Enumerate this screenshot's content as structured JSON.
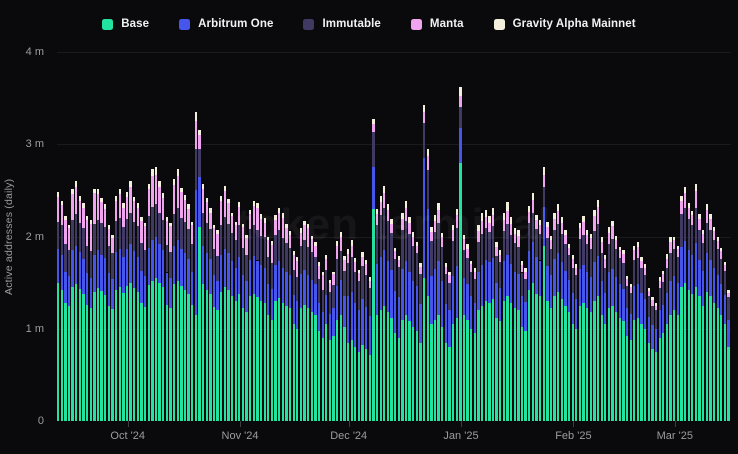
{
  "chart_data": {
    "type": "bar",
    "subtype": "stacked-daily",
    "title": "",
    "ylabel": "Active addresses (daily)",
    "xlabel": "",
    "unit": "millions",
    "y_max": 4,
    "grid": "horizontal-faint",
    "legend_position": "top-center",
    "watermark": "token terminal",
    "y_ticks": [
      {
        "label": "4 m",
        "value": 4
      },
      {
        "label": "3 m",
        "value": 3
      },
      {
        "label": "2 m",
        "value": 2
      },
      {
        "label": "1 m",
        "value": 1
      },
      {
        "label": "0",
        "value": 0
      }
    ],
    "x_ticks": [
      {
        "label": "Oct '24",
        "day_index": 19
      },
      {
        "label": "Nov '24",
        "day_index": 50
      },
      {
        "label": "Dec '24",
        "day_index": 80
      },
      {
        "label": "Jan '25",
        "day_index": 111
      },
      {
        "label": "Feb '25",
        "day_index": 142
      },
      {
        "label": "Mar '25",
        "day_index": 170
      }
    ],
    "series_order_note": "each day tuple is [Base, Arbitrum One, Immutable, Manta, Gravity Alpha Mainnet] in millions of daily active addresses",
    "series": [
      {
        "id": "base",
        "name": "Base",
        "color": "#23e3a1"
      },
      {
        "id": "arbitrum",
        "name": "Arbitrum One",
        "color": "#4656ec"
      },
      {
        "id": "immutable",
        "name": "Immutable",
        "color": "#403a63"
      },
      {
        "id": "manta",
        "name": "Manta",
        "color": "#f0a4f0"
      },
      {
        "id": "gravity",
        "name": "Gravity Alpha Mainnet",
        "color": "#f4efdc"
      }
    ],
    "days": [
      [
        1.5,
        0.36,
        0.3,
        0.27,
        0.05
      ],
      [
        1.42,
        0.38,
        0.32,
        0.22,
        0.05
      ],
      [
        1.28,
        0.34,
        0.3,
        0.26,
        0.04
      ],
      [
        1.25,
        0.32,
        0.28,
        0.24,
        0.04
      ],
      [
        1.45,
        0.4,
        0.33,
        0.28,
        0.05
      ],
      [
        1.48,
        0.42,
        0.34,
        0.3,
        0.06
      ],
      [
        1.43,
        0.4,
        0.32,
        0.24,
        0.05
      ],
      [
        1.38,
        0.38,
        0.33,
        0.22,
        0.05
      ],
      [
        1.26,
        0.34,
        0.3,
        0.28,
        0.04
      ],
      [
        1.22,
        0.33,
        0.29,
        0.3,
        0.04
      ],
      [
        1.4,
        0.4,
        0.34,
        0.33,
        0.05
      ],
      [
        1.44,
        0.41,
        0.33,
        0.28,
        0.06
      ],
      [
        1.41,
        0.39,
        0.35,
        0.22,
        0.05
      ],
      [
        1.37,
        0.4,
        0.33,
        0.2,
        0.05
      ],
      [
        1.25,
        0.35,
        0.3,
        0.18,
        0.04
      ],
      [
        1.21,
        0.33,
        0.28,
        0.16,
        0.04
      ],
      [
        1.42,
        0.41,
        0.34,
        0.22,
        0.05
      ],
      [
        1.45,
        0.42,
        0.33,
        0.26,
        0.06
      ],
      [
        1.39,
        0.39,
        0.32,
        0.21,
        0.05
      ],
      [
        1.46,
        0.4,
        0.33,
        0.24,
        0.05
      ],
      [
        1.5,
        0.42,
        0.34,
        0.28,
        0.06
      ],
      [
        1.44,
        0.4,
        0.32,
        0.22,
        0.05
      ],
      [
        1.4,
        0.38,
        0.33,
        0.2,
        0.05
      ],
      [
        1.28,
        0.35,
        0.3,
        0.24,
        0.04
      ],
      [
        1.24,
        0.33,
        0.28,
        0.26,
        0.04
      ],
      [
        1.47,
        0.41,
        0.34,
        0.3,
        0.05
      ],
      [
        1.52,
        0.44,
        0.36,
        0.34,
        0.07
      ],
      [
        1.55,
        0.45,
        0.35,
        0.32,
        0.08
      ],
      [
        1.5,
        0.42,
        0.34,
        0.28,
        0.06
      ],
      [
        1.45,
        0.4,
        0.33,
        0.24,
        0.05
      ],
      [
        1.26,
        0.35,
        0.3,
        0.26,
        0.04
      ],
      [
        1.22,
        0.33,
        0.28,
        0.28,
        0.04
      ],
      [
        1.48,
        0.42,
        0.34,
        0.32,
        0.06
      ],
      [
        1.52,
        0.44,
        0.35,
        0.35,
        0.07
      ],
      [
        1.46,
        0.41,
        0.33,
        0.28,
        0.05
      ],
      [
        1.42,
        0.4,
        0.34,
        0.24,
        0.05
      ],
      [
        1.38,
        0.38,
        0.32,
        0.22,
        0.05
      ],
      [
        1.26,
        0.36,
        0.3,
        0.2,
        0.04
      ],
      [
        1.15,
        1.35,
        0.45,
        0.3,
        0.1
      ],
      [
        2.1,
        0.55,
        0.3,
        0.15,
        0.05
      ],
      [
        1.48,
        0.42,
        0.35,
        0.26,
        0.06
      ],
      [
        1.42,
        0.4,
        0.33,
        0.22,
        0.05
      ],
      [
        1.38,
        0.38,
        0.32,
        0.18,
        0.05
      ],
      [
        1.24,
        0.34,
        0.29,
        0.22,
        0.04
      ],
      [
        1.2,
        0.32,
        0.27,
        0.24,
        0.04
      ],
      [
        1.4,
        0.4,
        0.33,
        0.26,
        0.05
      ],
      [
        1.45,
        0.42,
        0.34,
        0.28,
        0.06
      ],
      [
        1.42,
        0.4,
        0.32,
        0.22,
        0.05
      ],
      [
        1.36,
        0.37,
        0.31,
        0.18,
        0.04
      ],
      [
        1.3,
        0.36,
        0.3,
        0.16,
        0.04
      ],
      [
        1.38,
        0.4,
        0.34,
        0.2,
        0.05
      ],
      [
        1.22,
        0.36,
        0.3,
        0.22,
        0.04
      ],
      [
        1.18,
        0.34,
        0.28,
        0.18,
        0.04
      ],
      [
        1.35,
        0.4,
        0.33,
        0.16,
        0.05
      ],
      [
        1.38,
        0.41,
        0.34,
        0.2,
        0.06
      ],
      [
        1.34,
        0.4,
        0.33,
        0.24,
        0.05
      ],
      [
        1.3,
        0.39,
        0.32,
        0.18,
        0.05
      ],
      [
        1.28,
        0.38,
        0.33,
        0.16,
        0.05
      ],
      [
        1.15,
        0.34,
        0.29,
        0.18,
        0.04
      ],
      [
        1.1,
        0.33,
        0.28,
        0.2,
        0.04
      ],
      [
        1.3,
        0.39,
        0.33,
        0.16,
        0.05
      ],
      [
        1.33,
        0.4,
        0.34,
        0.18,
        0.06
      ],
      [
        1.28,
        0.38,
        0.32,
        0.22,
        0.05
      ],
      [
        1.25,
        0.37,
        0.31,
        0.16,
        0.05
      ],
      [
        1.22,
        0.36,
        0.3,
        0.14,
        0.04
      ],
      [
        1.05,
        0.32,
        0.27,
        0.16,
        0.04
      ],
      [
        1.0,
        0.3,
        0.26,
        0.18,
        0.04
      ],
      [
        1.22,
        0.37,
        0.31,
        0.14,
        0.05
      ],
      [
        1.26,
        0.38,
        0.32,
        0.16,
        0.05
      ],
      [
        1.22,
        0.36,
        0.31,
        0.2,
        0.05
      ],
      [
        1.18,
        0.35,
        0.3,
        0.14,
        0.04
      ],
      [
        1.15,
        0.34,
        0.29,
        0.12,
        0.04
      ],
      [
        0.98,
        0.3,
        0.26,
        0.14,
        0.04
      ],
      [
        0.9,
        0.28,
        0.24,
        0.16,
        0.03
      ],
      [
        1.05,
        0.32,
        0.27,
        0.12,
        0.04
      ],
      [
        0.88,
        0.28,
        0.24,
        0.1,
        0.03
      ],
      [
        0.92,
        0.3,
        0.25,
        0.12,
        0.03
      ],
      [
        1.1,
        0.36,
        0.3,
        0.14,
        0.05
      ],
      [
        1.15,
        0.38,
        0.31,
        0.16,
        0.05
      ],
      [
        1.02,
        0.33,
        0.28,
        0.12,
        0.04
      ],
      [
        0.85,
        0.5,
        0.36,
        0.1,
        0.05
      ],
      [
        0.88,
        0.52,
        0.38,
        0.12,
        0.06
      ],
      [
        0.8,
        0.48,
        0.34,
        0.1,
        0.05
      ],
      [
        0.75,
        0.45,
        0.32,
        0.08,
        0.04
      ],
      [
        0.82,
        0.5,
        0.36,
        0.1,
        0.05
      ],
      [
        0.78,
        0.46,
        0.34,
        0.12,
        0.05
      ],
      [
        0.72,
        0.42,
        0.3,
        0.08,
        0.04
      ],
      [
        2.3,
        0.45,
        0.38,
        0.09,
        0.05
      ],
      [
        1.15,
        0.55,
        0.42,
        0.12,
        0.06
      ],
      [
        1.2,
        0.58,
        0.45,
        0.14,
        0.07
      ],
      [
        1.25,
        0.6,
        0.46,
        0.16,
        0.08
      ],
      [
        1.18,
        0.56,
        0.43,
        0.12,
        0.06
      ],
      [
        1.12,
        0.52,
        0.4,
        0.1,
        0.05
      ],
      [
        0.95,
        0.46,
        0.35,
        0.08,
        0.04
      ],
      [
        0.9,
        0.44,
        0.33,
        0.08,
        0.04
      ],
      [
        1.1,
        0.55,
        0.42,
        0.12,
        0.06
      ],
      [
        1.15,
        0.58,
        0.44,
        0.14,
        0.07
      ],
      [
        1.08,
        0.54,
        0.41,
        0.12,
        0.06
      ],
      [
        1.02,
        0.5,
        0.38,
        0.1,
        0.05
      ],
      [
        0.98,
        0.48,
        0.36,
        0.08,
        0.04
      ],
      [
        0.85,
        0.42,
        0.32,
        0.08,
        0.04
      ],
      [
        1.55,
        1.3,
        0.38,
        0.12,
        0.08
      ],
      [
        1.35,
        0.95,
        0.42,
        0.15,
        0.08
      ],
      [
        1.05,
        0.52,
        0.38,
        0.1,
        0.05
      ],
      [
        1.1,
        0.55,
        0.4,
        0.12,
        0.06
      ],
      [
        1.15,
        0.58,
        0.42,
        0.14,
        0.07
      ],
      [
        1.02,
        0.5,
        0.37,
        0.1,
        0.05
      ],
      [
        0.85,
        0.42,
        0.32,
        0.08,
        0.04
      ],
      [
        0.8,
        0.4,
        0.3,
        0.08,
        0.04
      ],
      [
        1.05,
        0.52,
        0.38,
        0.12,
        0.06
      ],
      [
        1.12,
        0.56,
        0.41,
        0.14,
        0.07
      ],
      [
        2.8,
        0.38,
        0.22,
        0.12,
        0.1
      ],
      [
        1.15,
        0.4,
        0.3,
        0.12,
        0.05
      ],
      [
        1.1,
        0.38,
        0.29,
        0.1,
        0.05
      ],
      [
        1.0,
        0.35,
        0.27,
        0.08,
        0.04
      ],
      [
        0.95,
        0.33,
        0.26,
        0.08,
        0.04
      ],
      [
        1.2,
        0.42,
        0.32,
        0.12,
        0.06
      ],
      [
        1.25,
        0.44,
        0.34,
        0.14,
        0.08
      ],
      [
        1.3,
        0.45,
        0.34,
        0.12,
        0.08
      ],
      [
        1.28,
        0.44,
        0.33,
        0.1,
        0.07
      ],
      [
        1.32,
        0.45,
        0.34,
        0.12,
        0.08
      ],
      [
        1.12,
        0.38,
        0.29,
        0.1,
        0.05
      ],
      [
        1.08,
        0.36,
        0.28,
        0.08,
        0.05
      ],
      [
        1.3,
        0.43,
        0.33,
        0.12,
        0.07
      ],
      [
        1.35,
        0.45,
        0.34,
        0.14,
        0.09
      ],
      [
        1.28,
        0.42,
        0.32,
        0.12,
        0.07
      ],
      [
        1.22,
        0.4,
        0.31,
        0.1,
        0.06
      ],
      [
        1.2,
        0.39,
        0.3,
        0.12,
        0.06
      ],
      [
        1.02,
        0.33,
        0.26,
        0.08,
        0.04
      ],
      [
        0.98,
        0.31,
        0.25,
        0.08,
        0.04
      ],
      [
        1.42,
        0.42,
        0.31,
        0.12,
        0.06
      ],
      [
        1.5,
        0.44,
        0.32,
        0.14,
        0.07
      ],
      [
        1.38,
        0.4,
        0.3,
        0.1,
        0.05
      ],
      [
        1.35,
        0.39,
        0.29,
        0.1,
        0.05
      ],
      [
        1.9,
        0.42,
        0.22,
        0.13,
        0.08
      ],
      [
        1.3,
        0.38,
        0.3,
        0.12,
        0.06
      ],
      [
        1.22,
        0.36,
        0.28,
        0.1,
        0.05
      ],
      [
        1.35,
        0.41,
        0.31,
        0.12,
        0.06
      ],
      [
        1.4,
        0.42,
        0.32,
        0.14,
        0.07
      ],
      [
        1.32,
        0.4,
        0.31,
        0.12,
        0.06
      ],
      [
        1.25,
        0.38,
        0.29,
        0.1,
        0.05
      ],
      [
        1.18,
        0.35,
        0.27,
        0.08,
        0.04
      ],
      [
        1.05,
        0.34,
        0.27,
        0.1,
        0.04
      ],
      [
        1.0,
        0.32,
        0.26,
        0.08,
        0.04
      ],
      [
        1.25,
        0.4,
        0.32,
        0.12,
        0.06
      ],
      [
        1.28,
        0.41,
        0.33,
        0.14,
        0.06
      ],
      [
        1.22,
        0.39,
        0.31,
        0.1,
        0.05
      ],
      [
        1.18,
        0.38,
        0.3,
        0.12,
        0.05
      ],
      [
        1.3,
        0.42,
        0.34,
        0.16,
        0.07
      ],
      [
        1.35,
        0.44,
        0.35,
        0.18,
        0.08
      ],
      [
        1.15,
        0.37,
        0.3,
        0.12,
        0.05
      ],
      [
        1.05,
        0.34,
        0.27,
        0.1,
        0.04
      ],
      [
        1.22,
        0.39,
        0.31,
        0.12,
        0.06
      ],
      [
        1.25,
        0.4,
        0.32,
        0.14,
        0.06
      ],
      [
        1.18,
        0.38,
        0.3,
        0.1,
        0.05
      ],
      [
        1.12,
        0.36,
        0.29,
        0.08,
        0.04
      ],
      [
        1.08,
        0.35,
        0.28,
        0.1,
        0.04
      ],
      [
        0.92,
        0.3,
        0.24,
        0.08,
        0.03
      ],
      [
        0.88,
        0.28,
        0.23,
        0.06,
        0.03
      ],
      [
        1.1,
        0.36,
        0.29,
        0.1,
        0.05
      ],
      [
        1.12,
        0.36,
        0.29,
        0.12,
        0.05
      ],
      [
        1.05,
        0.34,
        0.27,
        0.08,
        0.04
      ],
      [
        1.0,
        0.32,
        0.26,
        0.08,
        0.04
      ],
      [
        0.85,
        0.28,
        0.22,
        0.06,
        0.03
      ],
      [
        0.78,
        0.26,
        0.21,
        0.06,
        0.03
      ],
      [
        0.75,
        0.25,
        0.2,
        0.05,
        0.03
      ],
      [
        0.9,
        0.3,
        0.24,
        0.08,
        0.04
      ],
      [
        0.95,
        0.31,
        0.25,
        0.08,
        0.04
      ],
      [
        1.05,
        0.34,
        0.27,
        0.1,
        0.05
      ],
      [
        1.15,
        0.37,
        0.3,
        0.12,
        0.05
      ],
      [
        1.2,
        0.37,
        0.29,
        0.1,
        0.04
      ],
      [
        1.15,
        0.35,
        0.28,
        0.08,
        0.04
      ],
      [
        1.45,
        0.44,
        0.35,
        0.14,
        0.06
      ],
      [
        1.5,
        0.45,
        0.36,
        0.16,
        0.07
      ],
      [
        1.42,
        0.43,
        0.34,
        0.12,
        0.05
      ],
      [
        1.38,
        0.42,
        0.33,
        0.1,
        0.05
      ],
      [
        1.45,
        0.48,
        0.38,
        0.18,
        0.08
      ],
      [
        1.35,
        0.4,
        0.32,
        0.12,
        0.05
      ],
      [
        1.25,
        0.38,
        0.3,
        0.1,
        0.04
      ],
      [
        1.4,
        0.42,
        0.33,
        0.14,
        0.06
      ],
      [
        1.35,
        0.4,
        0.32,
        0.12,
        0.05
      ],
      [
        1.28,
        0.38,
        0.3,
        0.1,
        0.04
      ],
      [
        1.22,
        0.36,
        0.29,
        0.08,
        0.04
      ],
      [
        1.15,
        0.34,
        0.27,
        0.08,
        0.04
      ],
      [
        1.05,
        0.32,
        0.26,
        0.06,
        0.03
      ],
      [
        0.8,
        0.3,
        0.24,
        0.05,
        0.03
      ]
    ]
  }
}
